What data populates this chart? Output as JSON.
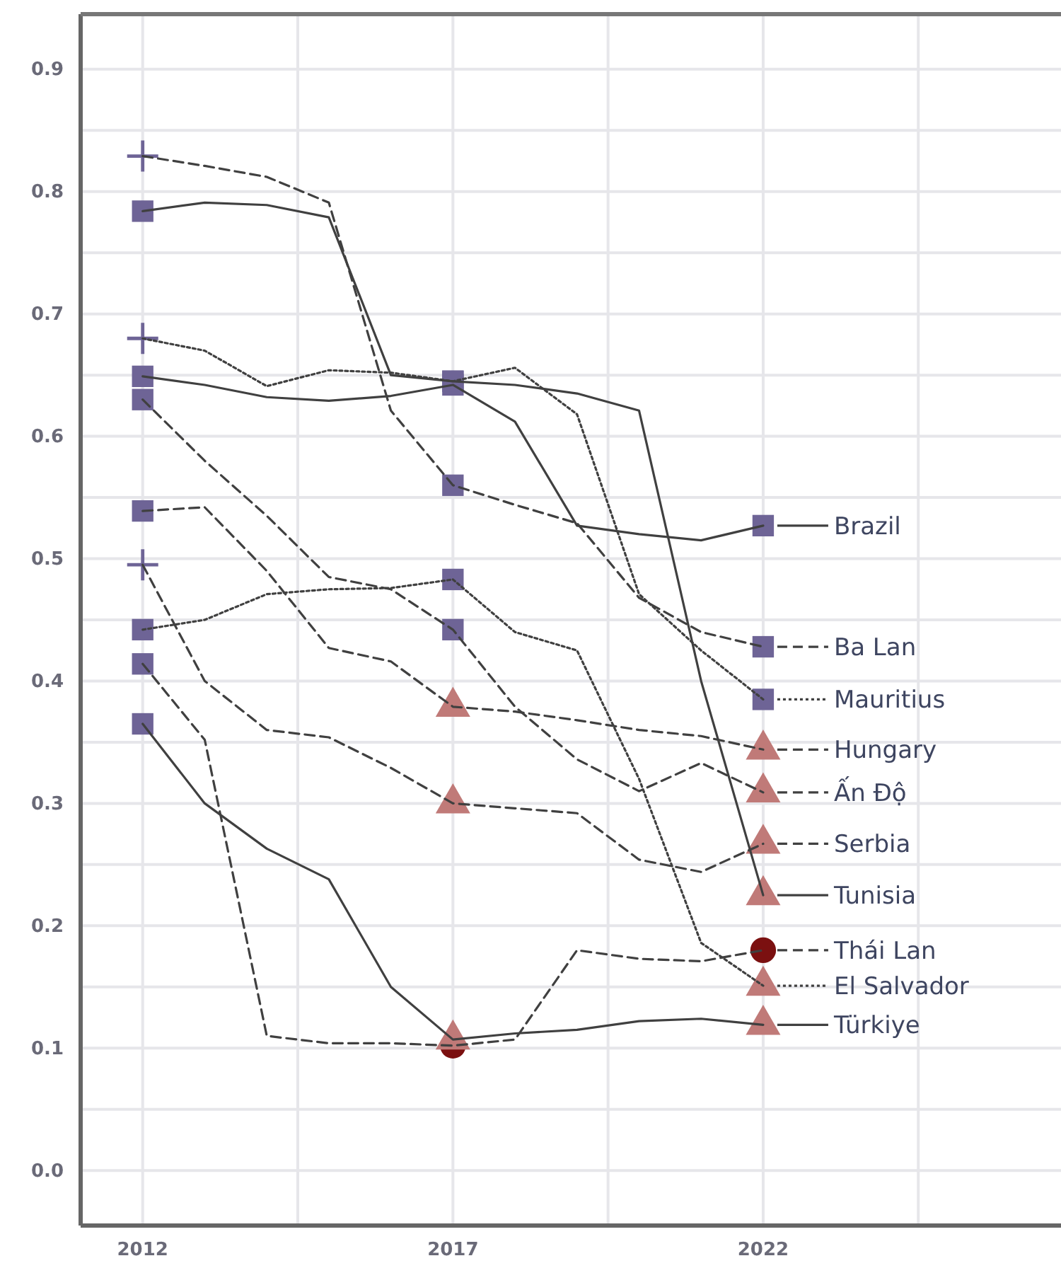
{
  "chart_data": {
    "type": "line",
    "x": [
      2012,
      2013,
      2014,
      2015,
      2016,
      2017,
      2018,
      2019,
      2020,
      2021,
      2022
    ],
    "xlim": [
      2011,
      2026.8
    ],
    "xticks": [
      2012,
      {
        "value": 2014.5,
        "label": null
      },
      2017,
      {
        "value": 2019.5,
        "label": null
      },
      2022,
      {
        "value": 2024.5,
        "label": null
      }
    ],
    "ylim": [
      -0.045,
      0.945
    ],
    "yticks": [
      {
        "value": 0,
        "label": "0.0"
      },
      {
        "value": 0.05,
        "label": null
      },
      0.1,
      {
        "value": 0.15,
        "label": null
      },
      0.2,
      {
        "value": 0.25,
        "label": null
      },
      0.3,
      {
        "value": 0.35,
        "label": null
      },
      0.4,
      {
        "value": 0.45,
        "label": null
      },
      0.5,
      {
        "value": 0.55,
        "label": null
      },
      0.6,
      {
        "value": 0.65,
        "label": null
      },
      0.7,
      {
        "value": 0.75,
        "label": null
      },
      0.8,
      {
        "value": 0.85,
        "label": null
      },
      0.9
    ],
    "grid": true,
    "legend": "right",
    "series": [
      {
        "name": "Brazil",
        "color": "#404040",
        "line_style": "solid",
        "values": [
          0.649,
          0.642,
          0.632,
          0.629,
          0.633,
          0.642,
          0.612,
          0.527,
          0.52,
          0.515,
          0.527
        ],
        "marker": [
          "square",
          null,
          null,
          null,
          null,
          "square",
          null,
          null,
          null,
          null,
          "square"
        ],
        "colors": [
          "#6e6496",
          null,
          null,
          null,
          null,
          "#6e6496",
          null,
          null,
          null,
          null,
          "#6e6496"
        ]
      },
      {
        "name": "Ba Lan",
        "color": "#404040",
        "line_style": "dashed",
        "values": [
          0.829,
          0.821,
          0.812,
          0.791,
          0.621,
          0.56,
          0.544,
          0.529,
          0.468,
          0.44,
          0.428
        ],
        "marker": [
          "cross",
          null,
          null,
          null,
          null,
          "square",
          null,
          null,
          null,
          null,
          "square"
        ],
        "colors": [
          "#6e6496",
          null,
          null,
          null,
          null,
          "#6e6496",
          null,
          null,
          null,
          null,
          "#6e6496"
        ]
      },
      {
        "name": "Mauritius",
        "color": "#404040",
        "line_style": "dotted",
        "values": [
          0.68,
          0.67,
          0.641,
          0.654,
          0.652,
          0.645,
          0.656,
          0.618,
          0.471,
          0.425,
          0.385
        ],
        "marker": [
          "cross",
          null,
          null,
          null,
          null,
          "square",
          null,
          null,
          null,
          null,
          "square"
        ],
        "colors": [
          "#6e6496",
          null,
          null,
          null,
          null,
          "#6e6496",
          null,
          null,
          null,
          null,
          "#6e6496"
        ]
      },
      {
        "name": "Hungary",
        "color": "#404040",
        "line_style": "dashed",
        "values": [
          0.539,
          0.542,
          0.49,
          0.427,
          0.416,
          0.379,
          0.375,
          0.368,
          0.36,
          0.355,
          0.344
        ],
        "marker": [
          "square",
          null,
          null,
          null,
          null,
          "triangle",
          null,
          null,
          null,
          null,
          "triangle"
        ],
        "colors": [
          "#6e6496",
          null,
          null,
          null,
          null,
          "#c07a78",
          null,
          null,
          null,
          null,
          "#c07a78"
        ]
      },
      {
        "name": "Ấn Độ",
        "color": "#404040",
        "line_style": "dashed",
        "values": [
          0.63,
          0.58,
          0.535,
          0.485,
          0.475,
          0.442,
          0.379,
          0.336,
          0.31,
          0.333,
          0.309
        ],
        "marker": [
          "square",
          null,
          null,
          null,
          null,
          "square",
          null,
          null,
          null,
          null,
          "triangle"
        ],
        "colors": [
          "#6e6496",
          null,
          null,
          null,
          null,
          "#6e6496",
          null,
          null,
          null,
          null,
          "#c07a78"
        ]
      },
      {
        "name": "Serbia",
        "color": "#404040",
        "line_style": "dashed",
        "values": [
          0.495,
          0.4,
          0.36,
          0.354,
          0.329,
          0.3,
          0.296,
          0.292,
          0.254,
          0.244,
          0.267
        ],
        "marker": [
          "cross",
          null,
          null,
          null,
          null,
          "triangle",
          null,
          null,
          null,
          null,
          "triangle"
        ],
        "colors": [
          "#6e6496",
          null,
          null,
          null,
          null,
          "#c07a78",
          null,
          null,
          null,
          null,
          "#c07a78"
        ]
      },
      {
        "name": "Tunisia",
        "color": "#404040",
        "line_style": "solid",
        "values": [
          0.784,
          0.791,
          0.789,
          0.779,
          0.65,
          0.645,
          0.642,
          0.635,
          0.621,
          0.4,
          0.225
        ],
        "marker": [
          "square",
          null,
          null,
          null,
          null,
          "square",
          null,
          null,
          null,
          null,
          "triangle"
        ],
        "colors": [
          "#6e6496",
          null,
          null,
          null,
          null,
          "#6e6496",
          null,
          null,
          null,
          null,
          "#c07a78"
        ]
      },
      {
        "name": "Thái Lan",
        "color": "#404040",
        "line_style": "dashed",
        "values": [
          0.414,
          0.352,
          0.11,
          0.104,
          0.104,
          0.102,
          0.107,
          0.18,
          0.173,
          0.171,
          0.18
        ],
        "marker": [
          "square",
          null,
          null,
          null,
          null,
          "circle",
          null,
          null,
          null,
          null,
          "circle"
        ],
        "colors": [
          "#6e6496",
          null,
          null,
          null,
          null,
          "#7b1010",
          null,
          null,
          null,
          null,
          "#7b1010"
        ]
      },
      {
        "name": "El Salvador",
        "color": "#404040",
        "line_style": "dotted",
        "values": [
          0.442,
          0.45,
          0.471,
          0.475,
          0.476,
          0.483,
          0.44,
          0.425,
          0.32,
          0.186,
          0.151
        ],
        "marker": [
          "square",
          null,
          null,
          null,
          null,
          "square",
          null,
          null,
          null,
          null,
          "triangle"
        ],
        "colors": [
          "#6e6496",
          null,
          null,
          null,
          null,
          "#6e6496",
          null,
          null,
          null,
          null,
          "#c07a78"
        ]
      },
      {
        "name": "Türkiye",
        "color": "#404040",
        "line_style": "solid",
        "values": [
          0.365,
          0.3,
          0.263,
          0.238,
          0.15,
          0.107,
          0.112,
          0.115,
          0.122,
          0.124,
          0.119
        ],
        "marker": [
          "square",
          null,
          null,
          null,
          null,
          "triangle",
          null,
          null,
          null,
          null,
          "triangle"
        ],
        "colors": [
          "#6e6496",
          null,
          null,
          null,
          null,
          "#c07a78",
          null,
          null,
          null,
          null,
          "#c07a78"
        ]
      }
    ]
  }
}
